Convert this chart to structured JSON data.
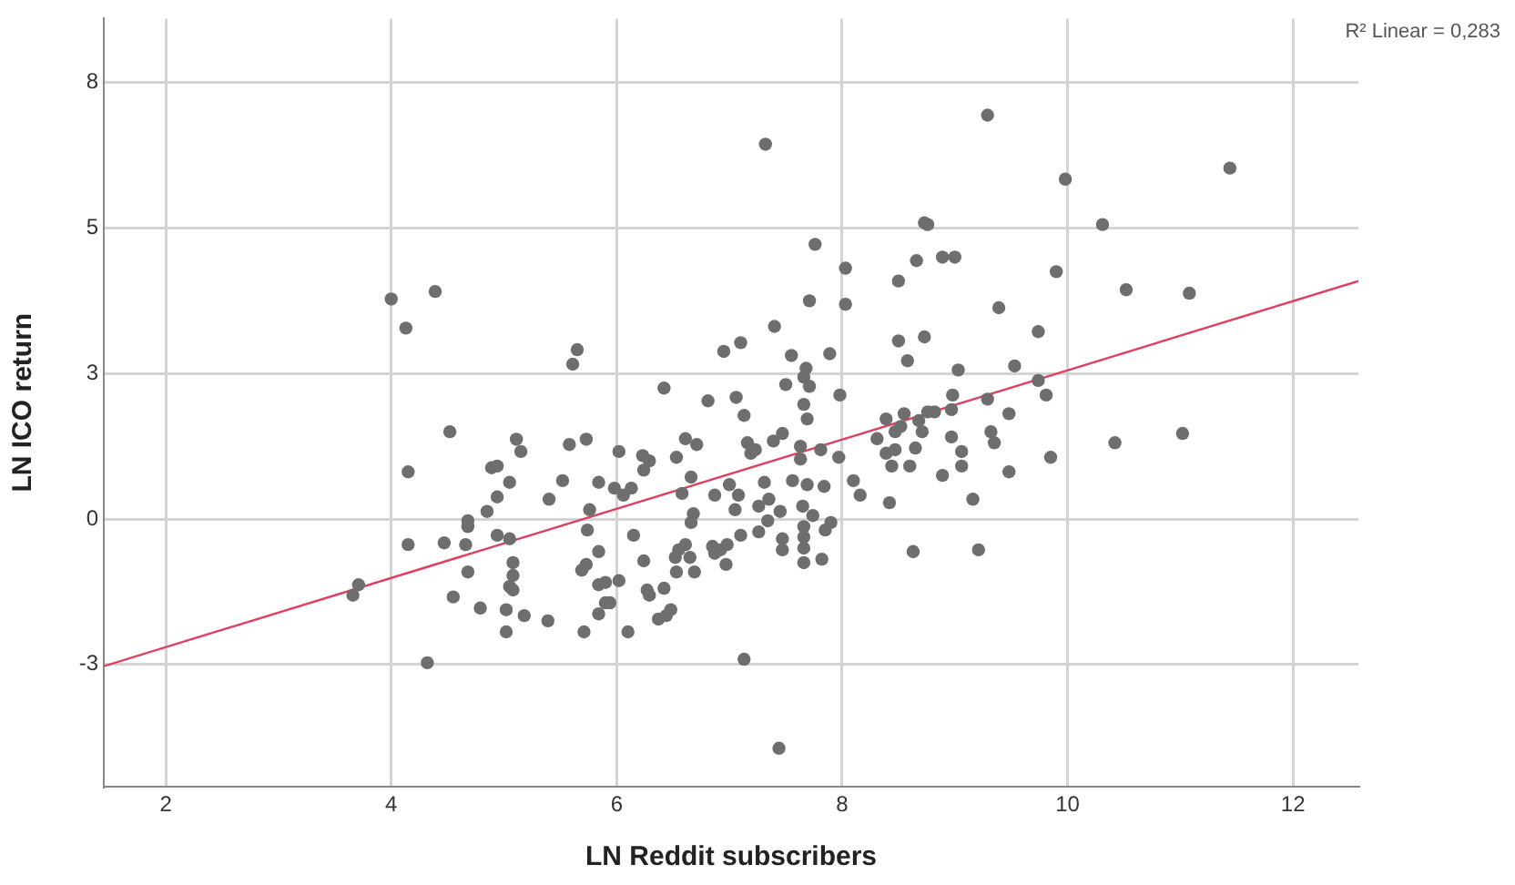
{
  "chart_data": {
    "type": "scatter",
    "xlabel": "LN Reddit subscribers",
    "ylabel": "LN ICO return",
    "xlim": [
      1.45,
      12.58
    ],
    "ylim": [
      -4.6,
      8.6
    ],
    "xticks": [
      2,
      4,
      6,
      8,
      10,
      12
    ],
    "yticks": [
      {
        "value": -2.5,
        "label": "-3"
      },
      {
        "value": 0,
        "label": "0"
      },
      {
        "value": 2.5,
        "label": "3"
      },
      {
        "value": 5,
        "label": "5"
      },
      {
        "value": 7.5,
        "label": "8"
      }
    ],
    "grid": true,
    "legend": false,
    "marker": "circle",
    "annotations": [
      "R² Linear = 0,283"
    ],
    "series": [
      {
        "color": "#6e6e6e",
        "x": [
          4.0,
          4.39,
          4.13,
          5.65,
          5.61,
          4.52,
          5.11,
          5.15,
          5.58,
          5.73,
          4.15,
          4.89,
          4.94,
          5.05,
          5.52,
          5.4,
          5.84,
          4.94,
          4.85,
          5.76,
          4.68,
          4.68,
          4.94,
          5.05,
          4.15,
          4.47,
          4.66,
          5.74,
          5.84,
          5.08,
          5.08,
          4.68,
          5.73,
          5.69,
          5.05,
          5.08,
          5.84,
          3.71,
          3.66,
          4.55,
          4.79,
          5.02,
          5.18,
          5.39,
          5.02,
          5.71,
          5.84,
          5.9,
          4.32,
          7.32,
          7.1,
          6.95,
          6.42,
          6.81,
          7.06,
          7.13,
          6.02,
          6.61,
          6.71,
          7.16,
          7.19,
          6.23,
          6.29,
          6.53,
          6.24,
          5.98,
          6.06,
          6.13,
          6.66,
          6.58,
          6.87,
          7.0,
          7.08,
          7.05,
          6.68,
          6.66,
          7.26,
          7.26,
          7.1,
          6.15,
          6.61,
          6.55,
          6.52,
          6.65,
          6.53,
          6.69,
          6.85,
          6.92,
          6.98,
          6.87,
          6.97,
          6.24,
          5.9,
          6.02,
          5.94,
          6.27,
          6.29,
          6.42,
          6.48,
          6.37,
          6.44,
          6.1,
          7.13,
          8.73,
          7.76,
          8.03,
          8.66,
          8.5,
          7.71,
          8.03,
          7.4,
          8.5,
          8.73,
          8.58,
          7.55,
          7.89,
          7.68,
          7.66,
          7.5,
          7.71,
          7.66,
          7.69,
          7.98,
          7.47,
          8.52,
          8.68,
          8.39,
          8.55,
          8.47,
          7.39,
          7.63,
          7.23,
          7.81,
          7.97,
          7.63,
          8.31,
          8.39,
          8.47,
          8.44,
          8.6,
          8.65,
          7.31,
          7.56,
          7.69,
          7.84,
          8.1,
          8.16,
          8.42,
          7.35,
          7.45,
          7.65,
          7.74,
          7.34,
          7.66,
          7.9,
          7.85,
          7.47,
          7.66,
          7.47,
          7.66,
          7.66,
          7.82,
          8.63,
          7.44,
          9.29,
          11.44,
          9.98,
          8.76,
          10.31,
          8.89,
          9.0,
          9.9,
          10.52,
          11.08,
          9.39,
          9.74,
          9.53,
          9.03,
          9.74,
          9.81,
          8.98,
          9.29,
          8.76,
          8.82,
          8.97,
          9.48,
          8.71,
          8.97,
          9.32,
          9.35,
          9.06,
          9.06,
          8.89,
          9.48,
          9.85,
          10.42,
          11.02,
          9.16,
          9.21
        ],
        "values": [
          3.78,
          3.91,
          3.28,
          2.91,
          2.66,
          1.5,
          1.37,
          1.16,
          1.28,
          1.37,
          0.81,
          0.88,
          0.91,
          0.63,
          0.66,
          0.34,
          0.63,
          0.38,
          0.13,
          0.16,
          -0.03,
          -0.13,
          -0.28,
          -0.34,
          -0.44,
          -0.41,
          -0.44,
          -0.19,
          -0.56,
          -0.75,
          -0.97,
          -0.91,
          -0.78,
          -0.88,
          -1.16,
          -1.22,
          -1.13,
          -1.13,
          -1.31,
          -1.34,
          -1.53,
          -1.56,
          -1.66,
          -1.75,
          -1.94,
          -1.94,
          -1.63,
          -1.44,
          -2.47,
          6.44,
          3.03,
          2.88,
          2.25,
          2.03,
          2.09,
          1.78,
          1.16,
          1.38,
          1.28,
          1.31,
          1.13,
          1.09,
          1.0,
          1.06,
          0.84,
          0.53,
          0.41,
          0.53,
          0.72,
          0.44,
          0.41,
          0.59,
          0.41,
          0.16,
          0.09,
          -0.06,
          0.22,
          -0.22,
          -0.28,
          -0.28,
          -0.44,
          -0.53,
          -0.66,
          -0.66,
          -0.91,
          -0.91,
          -0.47,
          -0.53,
          -0.44,
          -0.59,
          -0.78,
          -0.72,
          -1.09,
          -1.06,
          -1.44,
          -1.22,
          -1.31,
          -1.19,
          -1.56,
          -1.72,
          -1.66,
          -1.94,
          -2.41,
          5.09,
          4.72,
          4.31,
          4.44,
          4.09,
          3.75,
          3.69,
          3.31,
          3.06,
          3.13,
          2.72,
          2.81,
          2.84,
          2.59,
          2.44,
          2.31,
          2.28,
          1.97,
          1.72,
          2.13,
          1.47,
          1.59,
          1.69,
          1.72,
          1.81,
          1.5,
          1.34,
          1.25,
          1.19,
          1.19,
          1.06,
          1.03,
          1.38,
          1.13,
          1.19,
          0.91,
          0.91,
          1.22,
          0.63,
          0.66,
          0.59,
          0.56,
          0.66,
          0.41,
          0.28,
          0.34,
          0.13,
          0.22,
          0.06,
          -0.03,
          -0.13,
          -0.06,
          -0.19,
          -0.34,
          -0.31,
          -0.53,
          -0.5,
          -0.75,
          -0.69,
          -0.56,
          -3.94,
          6.94,
          6.03,
          5.84,
          5.06,
          5.06,
          4.5,
          4.5,
          4.25,
          3.94,
          3.88,
          3.63,
          3.22,
          2.63,
          2.56,
          2.38,
          2.13,
          2.13,
          2.06,
          1.84,
          1.84,
          1.88,
          1.81,
          1.5,
          1.41,
          1.5,
          1.31,
          1.16,
          0.91,
          0.75,
          0.81,
          1.06,
          1.31,
          1.47,
          0.34,
          -0.53
        ]
      },
      {
        "type": "line",
        "marker": "none",
        "color": "#e0405f",
        "x": [
          1.45,
          12.58
        ],
        "values": [
          -2.53,
          4.09
        ]
      }
    ]
  }
}
